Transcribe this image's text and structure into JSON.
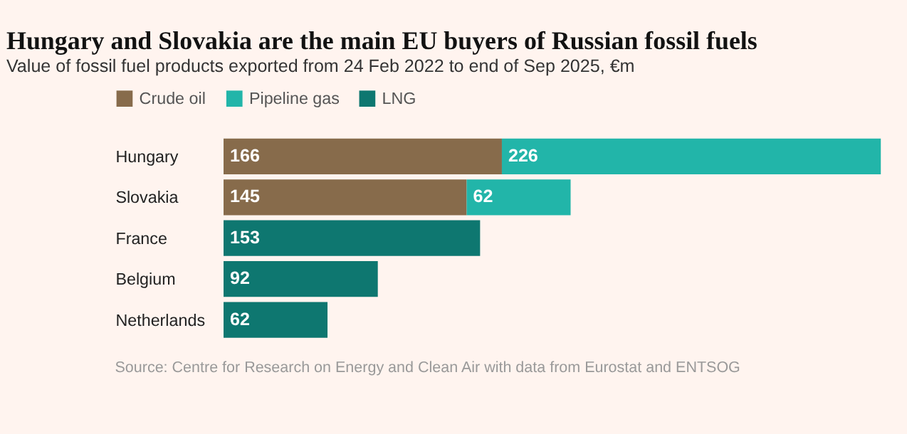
{
  "chart_data": {
    "type": "bar",
    "orientation": "horizontal",
    "stacked": true,
    "data_labels": true,
    "legend": "top left",
    "grid": false,
    "tick_labels": "y",
    "title": "Hungary and Slovakia are the main EU buyers of Russian fossil fuels",
    "subtitle": "Value of fossil fuel products exported from 24 Feb 2022 to end of Sep 2025, €m",
    "categories": [
      "Hungary",
      "Slovakia",
      "France",
      "Belgium",
      "Netherlands"
    ],
    "series": [
      {
        "name": "Crude oil",
        "color": "#876b4b",
        "values": [
          166,
          145,
          null,
          null,
          null
        ]
      },
      {
        "name": "Pipeline gas",
        "color": "#22b5a9",
        "values": [
          226,
          62,
          null,
          null,
          null
        ]
      },
      {
        "name": "LNG",
        "color": "#0e7770",
        "values": [
          null,
          null,
          153,
          92,
          62
        ]
      }
    ],
    "annotations": [
      "Source: Centre for Research on Energy and Clean Air with data from Eurostat and ENTSOG"
    ]
  }
}
